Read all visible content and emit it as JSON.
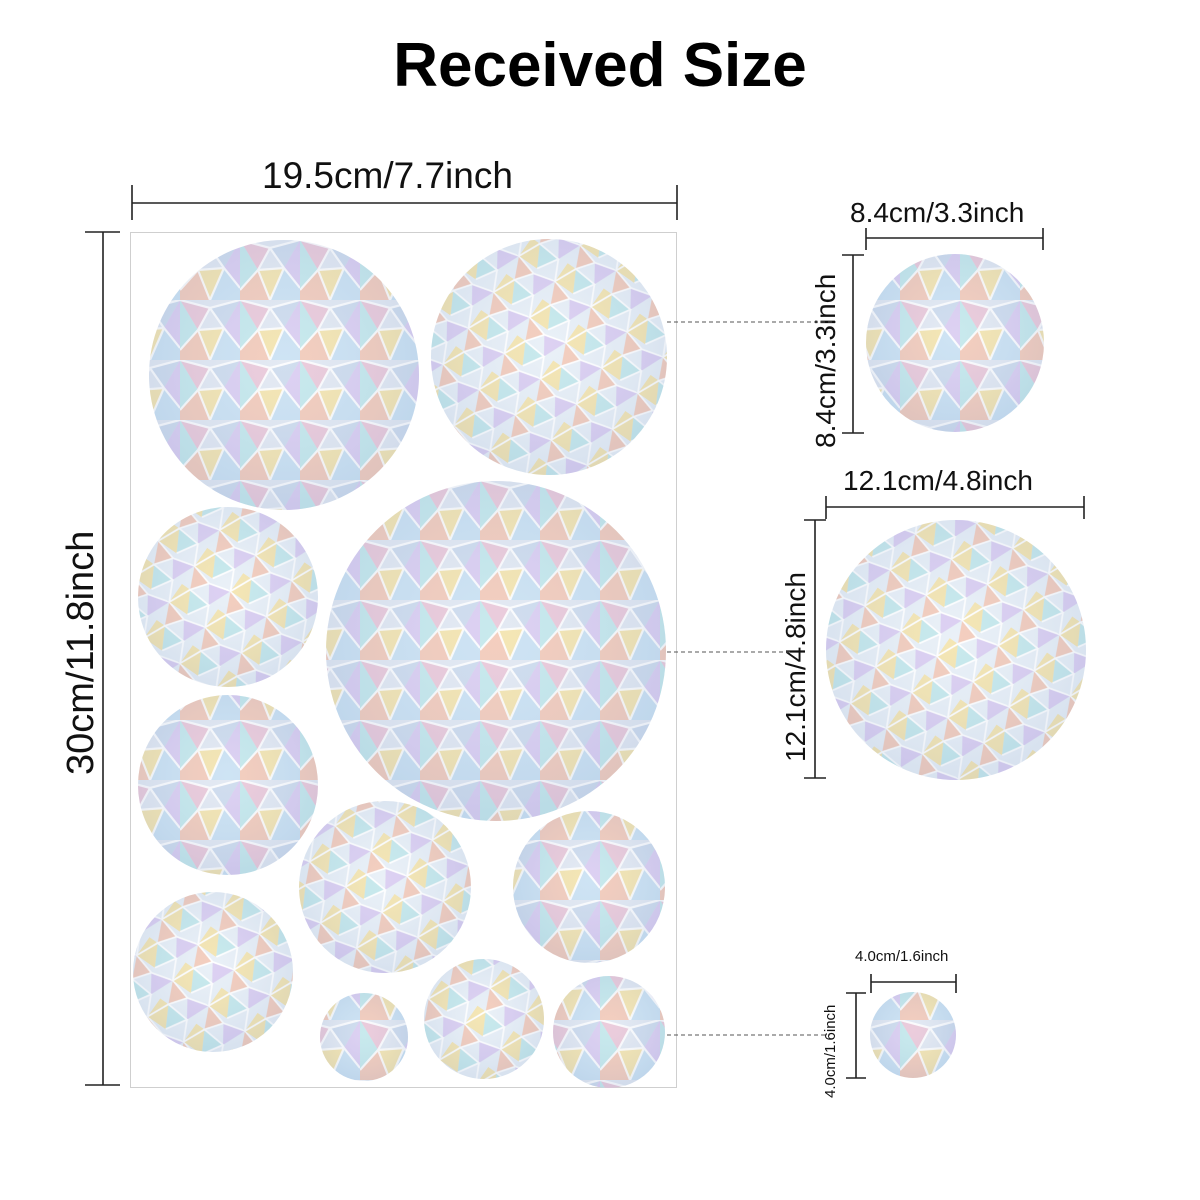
{
  "title": "Received Size",
  "sheet": {
    "width_label": "19.5cm/7.7inch",
    "height_label": "30cm/11.8inch"
  },
  "stickers": {
    "medium": {
      "width_label": "8.4cm/3.3inch",
      "height_label": "8.4cm/3.3inch"
    },
    "large": {
      "width_label": "12.1cm/4.8inch",
      "height_label": "12.1cm/4.8inch"
    },
    "small": {
      "width_label": "4.0cm/1.6inch",
      "height_label": "4.0cm/1.6inch"
    }
  },
  "colors": {
    "background": "#ffffff",
    "text": "#111111",
    "sheet_border": "#cfcfcf",
    "holo_tones": [
      "#c9d8ec",
      "#e8c4d6",
      "#f3e2a8",
      "#bfe6ea",
      "#d7c9f0",
      "#f2c6b4",
      "#e6eef6"
    ]
  }
}
